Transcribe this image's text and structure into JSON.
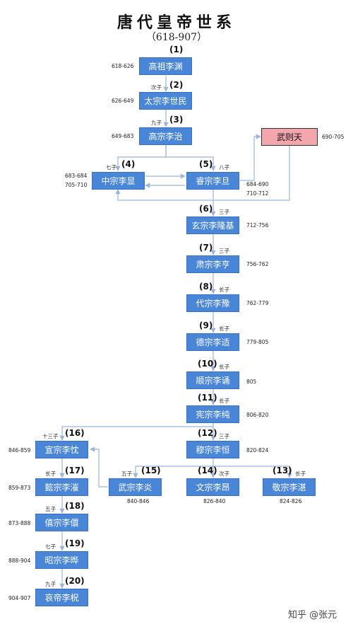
{
  "title": "唐代皇帝世系",
  "subtitle": "（618-907）",
  "watermark": "知乎 @张元",
  "emperors": [
    {
      "id": "gaozu",
      "name": "高祖李渊",
      "num": "(1)",
      "years": [
        "618-626"
      ]
    },
    {
      "id": "taizong",
      "name": "太宗李世民",
      "num": "(2)",
      "years": [
        "626-649"
      ],
      "relation": "次子"
    },
    {
      "id": "gaozong",
      "name": "高宗李治",
      "num": "(3)",
      "years": [
        "649-683"
      ],
      "relation": "九子"
    },
    {
      "id": "wuzetian",
      "name": "武则天",
      "years": [
        "690-705"
      ]
    },
    {
      "id": "zhongzong",
      "name": "中宗李显",
      "num": "(4)",
      "years": [
        "683-684",
        "705-710"
      ],
      "relation": "七子"
    },
    {
      "id": "ruizong",
      "name": "睿宗李旦",
      "num": "(5)",
      "years": [
        "684-690",
        "710-712"
      ],
      "relation": "八子"
    },
    {
      "id": "xuanzong",
      "name": "玄宗李隆基",
      "num": "(6)",
      "years": [
        "712-756"
      ],
      "relation": "三子"
    },
    {
      "id": "suzong",
      "name": "肃宗李亨",
      "num": "(7)",
      "years": [
        "756-762"
      ],
      "relation": "三子"
    },
    {
      "id": "daizong",
      "name": "代宗李豫",
      "num": "(8)",
      "years": [
        "762-779"
      ],
      "relation": "长子"
    },
    {
      "id": "dezong",
      "name": "德宗李适",
      "num": "(9)",
      "years": [
        "779-805"
      ],
      "relation": "长子"
    },
    {
      "id": "shunzong",
      "name": "顺宗李诵",
      "num": "(10)",
      "years": [
        "805"
      ],
      "relation": "长子"
    },
    {
      "id": "xianzong",
      "name": "宪宗李纯",
      "num": "(11)",
      "years": [
        "806-820"
      ],
      "relation": "长子"
    },
    {
      "id": "muzong",
      "name": "穆宗李恒",
      "num": "(12)",
      "years": [
        "820-824"
      ],
      "relation": "三子"
    },
    {
      "id": "jingzong",
      "name": "敬宗李湛",
      "num": "(13)",
      "years": [
        "824-826"
      ],
      "relation": "长子"
    },
    {
      "id": "wenzong",
      "name": "文宗李昂",
      "num": "(14)",
      "years": [
        "826-840"
      ],
      "relation": "次子"
    },
    {
      "id": "wuzong",
      "name": "武宗李炎",
      "num": "(15)",
      "years": [
        "840-846"
      ],
      "relation": "五子"
    },
    {
      "id": "xuanzong2",
      "name": "宣宗李忱",
      "num": "(16)",
      "years": [
        "846-859"
      ],
      "relation": "十三子"
    },
    {
      "id": "yizong",
      "name": "懿宗李漼",
      "num": "(17)",
      "years": [
        "859-873"
      ],
      "relation": "长子"
    },
    {
      "id": "xizong",
      "name": "僖宗李儇",
      "num": "(18)",
      "years": [
        "873-888"
      ],
      "relation": "五子"
    },
    {
      "id": "zhaozong",
      "name": "昭宗李晔",
      "num": "(19)",
      "years": [
        "888-904"
      ],
      "relation": "七子"
    },
    {
      "id": "aidi",
      "name": "哀帝李柷",
      "num": "(20)",
      "years": [
        "904-907"
      ],
      "relation": "九子"
    }
  ]
}
